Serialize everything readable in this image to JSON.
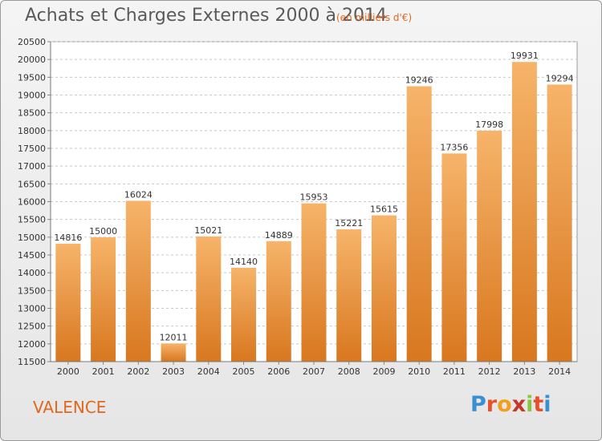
{
  "title": "Achats et Charges Externes 2000 à 2014",
  "subtitle": "(en milliers d'€)",
  "commune": "VALENCE",
  "logo": {
    "text": "Proxiti",
    "colors": [
      "#3a8fd0",
      "#e8502a",
      "#f0a01e",
      "#c0392b",
      "#8bc43f",
      "#e8502a",
      "#3a8fd0"
    ]
  },
  "colors": {
    "bar": "#f29a3c",
    "bar_top": "#f6b46a",
    "bar_bottom": "#d8771f",
    "accent": "#e0671f",
    "grid": "#c8c8c8"
  },
  "chart_data": {
    "type": "bar",
    "categories": [
      "2000",
      "2001",
      "2002",
      "2003",
      "2004",
      "2005",
      "2006",
      "2007",
      "2008",
      "2009",
      "2010",
      "2011",
      "2012",
      "2013",
      "2014"
    ],
    "values": [
      14816,
      15000,
      16024,
      12011,
      15021,
      14140,
      14889,
      15953,
      15221,
      15615,
      19246,
      17356,
      17998,
      19931,
      19294
    ],
    "ylim": [
      11500,
      20500
    ],
    "yticks": [
      11500,
      12000,
      12500,
      13000,
      13500,
      14000,
      14500,
      15000,
      15500,
      16000,
      16500,
      17000,
      17500,
      18000,
      18500,
      19000,
      19500,
      20000,
      20500
    ],
    "grid": true
  }
}
